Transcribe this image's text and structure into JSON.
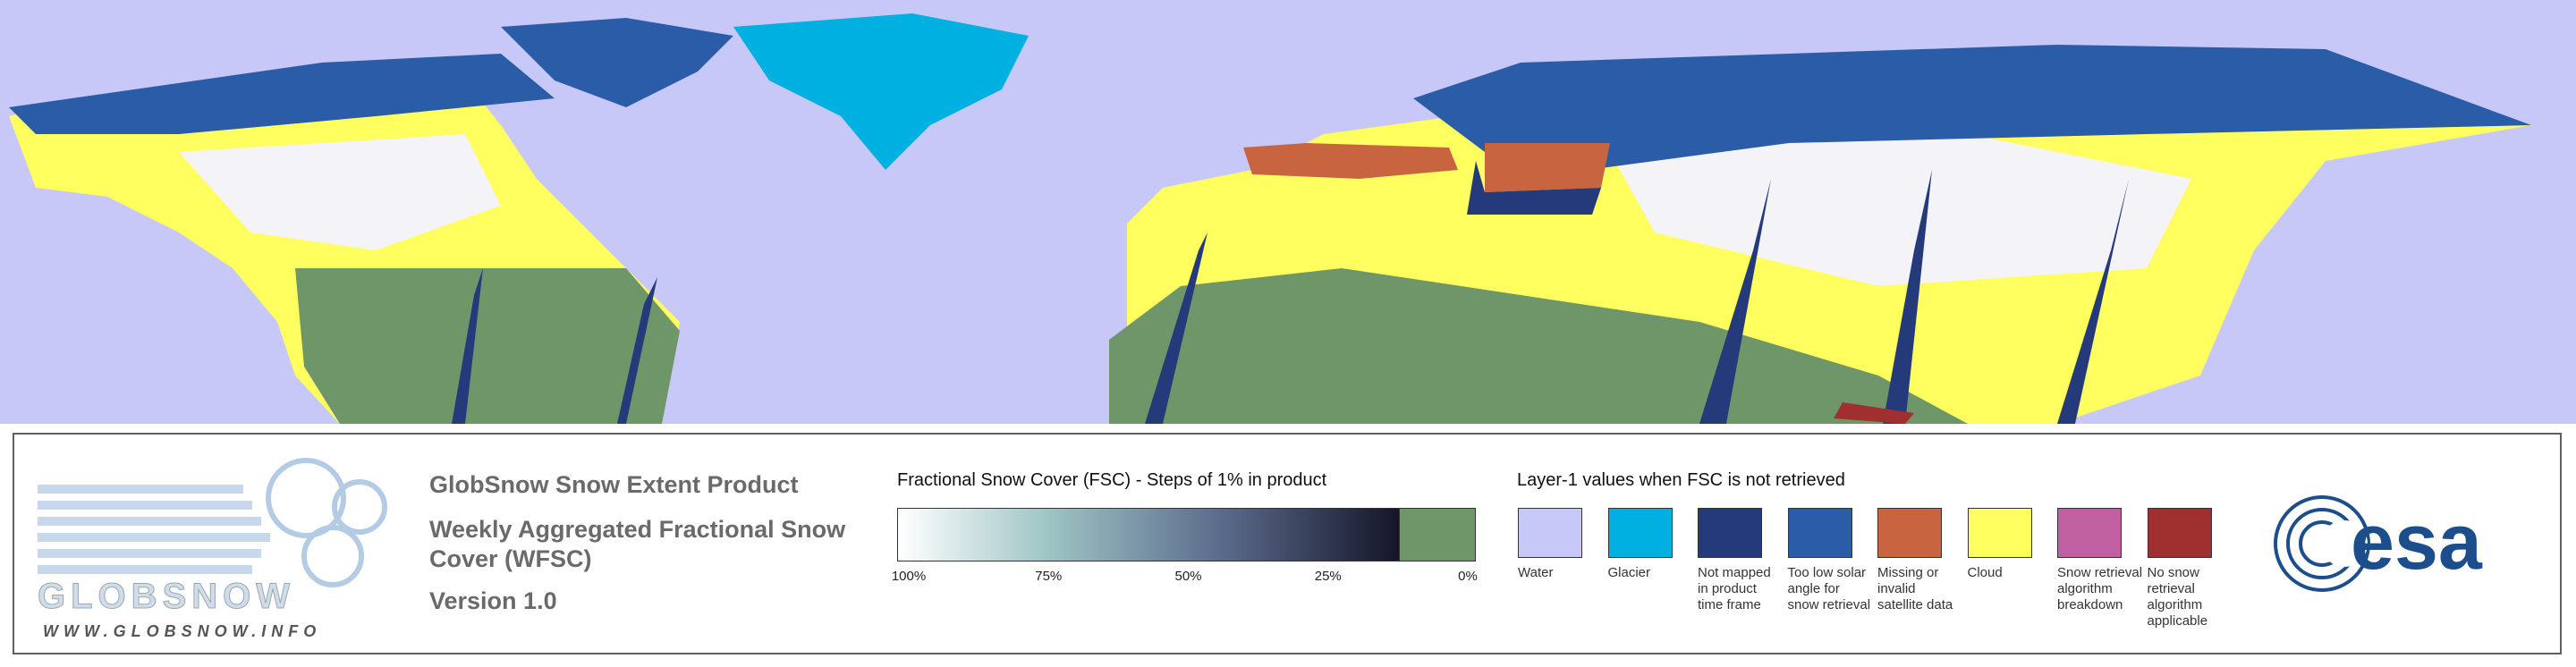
{
  "header": {
    "title": "GlobSnow Snow Extent Product",
    "subtitle": "Weekly Aggregated Fractional Snow Cover (WFSC)",
    "version": "Version 1.0"
  },
  "logos": {
    "globsnow": "GLOBSNOW",
    "globsnow_url": "WWW.GLOBSNOW.INFO",
    "esa": "esa"
  },
  "colorbar": {
    "title": "Fractional Snow Cover (FSC) - Steps of 1% in product",
    "ticks": [
      "100%",
      "75%",
      "50%",
      "25%",
      "0%"
    ]
  },
  "layer1": {
    "title": "Layer-1 values when FSC is not retrieved",
    "items": [
      {
        "label": "Water",
        "color": "#c8c8f8"
      },
      {
        "label": "Glacier",
        "color": "#00b0e0"
      },
      {
        "label": "Not mapped in product time frame",
        "color": "#253a7a"
      },
      {
        "label": "Too low solar angle for snow retrieval",
        "color": "#2a5ca8"
      },
      {
        "label": "Missing or invalid satellite data",
        "color": "#c86440"
      },
      {
        "label": "Cloud",
        "color": "#ffff60"
      },
      {
        "label": "Snow retrieval algorithm breakdown",
        "color": "#c060a0"
      },
      {
        "label": "No snow retrieval algorithm applicable",
        "color": "#a03030"
      }
    ]
  }
}
